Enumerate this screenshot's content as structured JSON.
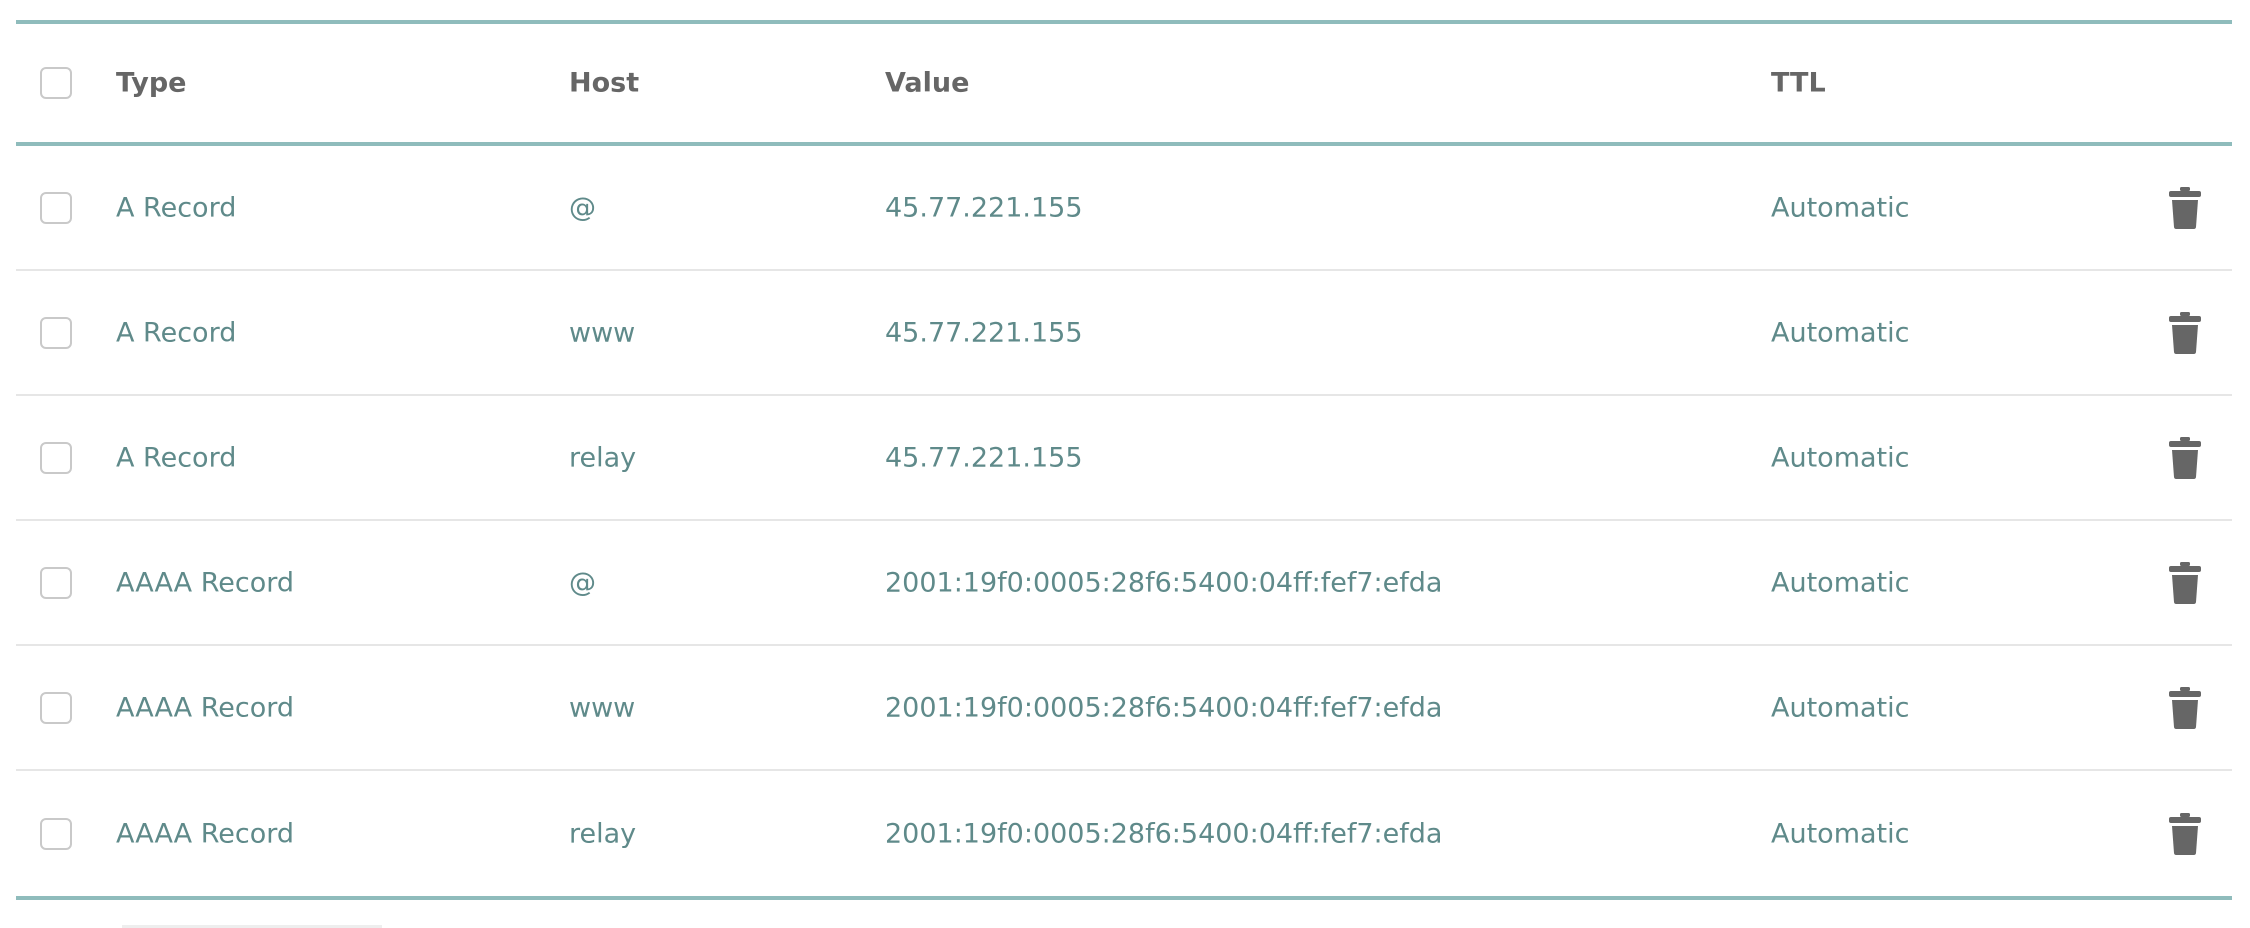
{
  "table": {
    "headers": {
      "type": "Type",
      "host": "Host",
      "value": "Value",
      "ttl": "TTL"
    },
    "rows": [
      {
        "type": "A Record",
        "host": "@",
        "value": "45.77.221.155",
        "ttl": "Automatic"
      },
      {
        "type": "A Record",
        "host": "www",
        "value": "45.77.221.155",
        "ttl": "Automatic"
      },
      {
        "type": "A Record",
        "host": "relay",
        "value": "45.77.221.155",
        "ttl": "Automatic"
      },
      {
        "type": "AAAA Record",
        "host": "@",
        "value": "2001:19f0:0005:28f6:5400:04ff:fef7:efda",
        "ttl": "Automatic"
      },
      {
        "type": "AAAA Record",
        "host": "www",
        "value": "2001:19f0:0005:28f6:5400:04ff:fef7:efda",
        "ttl": "Automatic"
      },
      {
        "type": "AAAA Record",
        "host": "relay",
        "value": "2001:19f0:0005:28f6:5400:04ff:fef7:efda",
        "ttl": "Automatic"
      }
    ]
  },
  "icons": {
    "row_action": "trash-icon"
  },
  "colors": {
    "accent_rule": "#8fbcbc",
    "header_text": "#666666",
    "data_text": "#5f8a8a",
    "icon": "#666666"
  }
}
